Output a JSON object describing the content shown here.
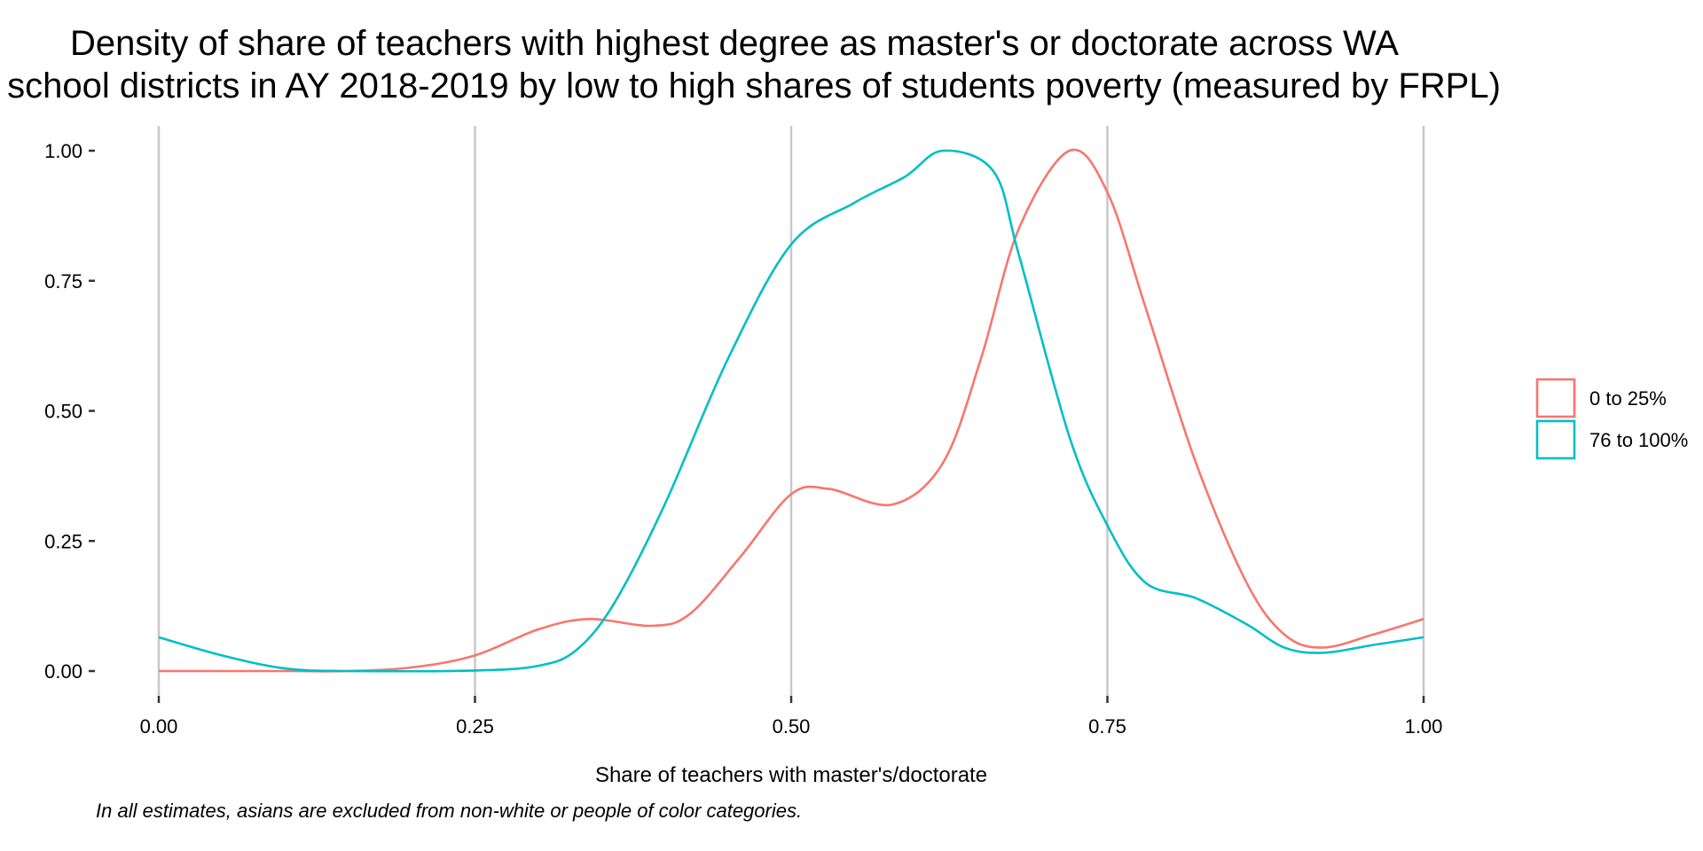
{
  "chart_data": {
    "type": "line",
    "title_lines": [
      "Density of share of teachers with highest degree as master's or doctorate across WA",
      "school districts in AY 2018-2019 by low to high shares of students poverty (measured by FRPL)"
    ],
    "xlabel": "Share of teachers with master's/doctorate",
    "ylabel": "",
    "caption": "In all estimates, asians are excluded from non-white or people of color categories.",
    "xlim": [
      0,
      1
    ],
    "ylim": [
      0,
      1
    ],
    "x_ticks": [
      "0.00",
      "0.25",
      "0.50",
      "0.75",
      "1.00"
    ],
    "y_ticks": [
      "0.00",
      "0.25",
      "0.50",
      "0.75",
      "1.00"
    ],
    "grid": "vertical major lines only",
    "legend_position": "right",
    "series": [
      {
        "name": "0 to 25%",
        "color": "#F8766D",
        "points": [
          [
            0.0,
            0.0
          ],
          [
            0.1,
            0.0
          ],
          [
            0.15,
            0.0
          ],
          [
            0.2,
            0.007
          ],
          [
            0.25,
            0.03
          ],
          [
            0.3,
            0.08
          ],
          [
            0.34,
            0.1
          ],
          [
            0.39,
            0.087
          ],
          [
            0.42,
            0.11
          ],
          [
            0.46,
            0.22
          ],
          [
            0.5,
            0.34
          ],
          [
            0.53,
            0.35
          ],
          [
            0.58,
            0.32
          ],
          [
            0.62,
            0.4
          ],
          [
            0.65,
            0.6
          ],
          [
            0.68,
            0.85
          ],
          [
            0.72,
            1.0
          ],
          [
            0.75,
            0.92
          ],
          [
            0.78,
            0.7
          ],
          [
            0.82,
            0.4
          ],
          [
            0.86,
            0.17
          ],
          [
            0.89,
            0.07
          ],
          [
            0.92,
            0.045
          ],
          [
            0.96,
            0.07
          ],
          [
            1.0,
            0.1
          ]
        ]
      },
      {
        "name": "76 to 100%",
        "color": "#00BFC4",
        "points": [
          [
            0.0,
            0.065
          ],
          [
            0.05,
            0.03
          ],
          [
            0.1,
            0.005
          ],
          [
            0.15,
            0.0
          ],
          [
            0.25,
            0.001
          ],
          [
            0.3,
            0.01
          ],
          [
            0.33,
            0.04
          ],
          [
            0.36,
            0.13
          ],
          [
            0.4,
            0.32
          ],
          [
            0.45,
            0.6
          ],
          [
            0.5,
            0.82
          ],
          [
            0.55,
            0.9
          ],
          [
            0.59,
            0.95
          ],
          [
            0.62,
            1.0
          ],
          [
            0.66,
            0.96
          ],
          [
            0.68,
            0.8
          ],
          [
            0.72,
            0.45
          ],
          [
            0.75,
            0.28
          ],
          [
            0.78,
            0.17
          ],
          [
            0.82,
            0.14
          ],
          [
            0.86,
            0.09
          ],
          [
            0.89,
            0.045
          ],
          [
            0.92,
            0.035
          ],
          [
            0.96,
            0.05
          ],
          [
            1.0,
            0.065
          ]
        ]
      }
    ]
  }
}
